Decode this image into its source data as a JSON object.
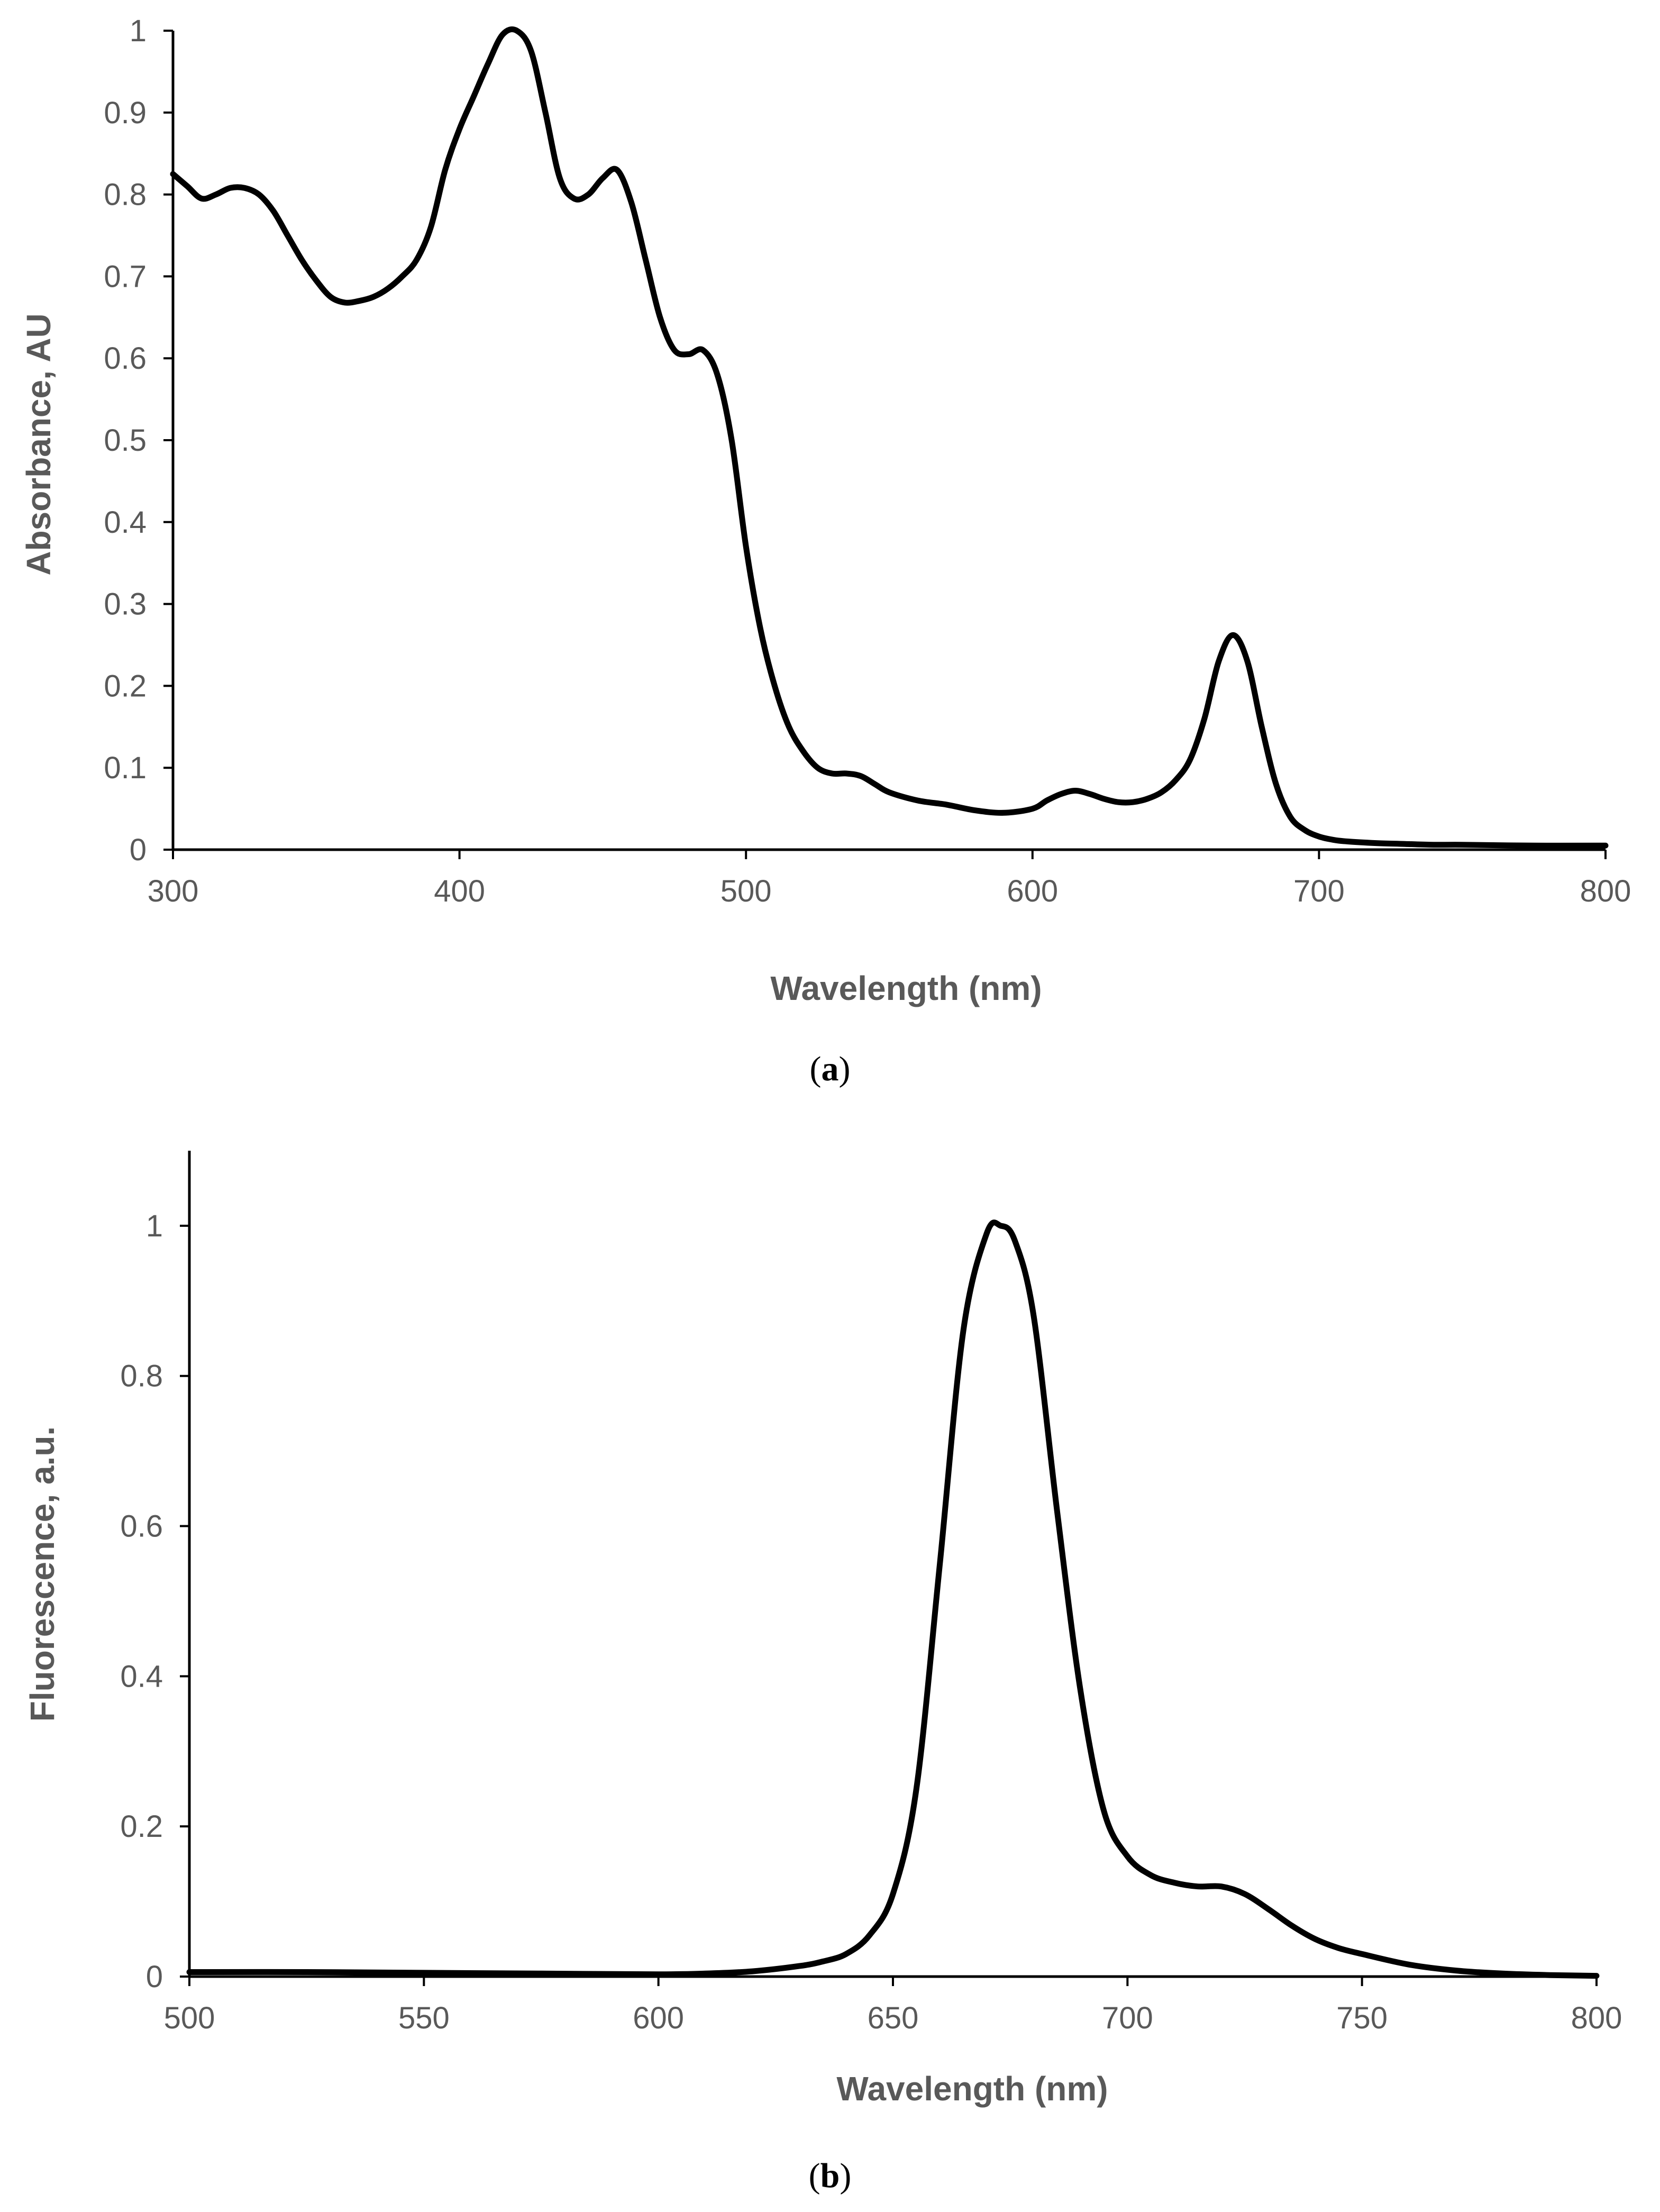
{
  "chart_data": [
    {
      "id": "a",
      "type": "line",
      "caption": "(a)",
      "caption_letter": "a",
      "xlabel": "Wavelength (nm)",
      "ylabel": "Absorbance, AU",
      "xlim": [
        300,
        800
      ],
      "ylim": [
        0,
        1
      ],
      "x_ticks": [
        300,
        400,
        500,
        600,
        700,
        800
      ],
      "x_tick_labels": [
        "300",
        "400",
        "500",
        "600",
        "700",
        "800"
      ],
      "y_ticks": [
        0,
        0.1,
        0.2,
        0.3,
        0.4,
        0.5,
        0.6,
        0.7,
        0.8,
        0.9,
        1
      ],
      "y_tick_labels": [
        "0",
        "0.1",
        "0.2",
        "0.3",
        "0.4",
        "0.5",
        "0.6",
        "0.7",
        "0.8",
        "0.9",
        "1"
      ],
      "grid": false,
      "series": [
        {
          "name": "Absorbance",
          "color": "#000000",
          "x": [
            300,
            305,
            310,
            315,
            320,
            325,
            330,
            335,
            340,
            345,
            350,
            355,
            360,
            365,
            370,
            375,
            380,
            385,
            390,
            395,
            400,
            405,
            410,
            415,
            420,
            425,
            430,
            435,
            440,
            445,
            450,
            455,
            460,
            465,
            470,
            475,
            480,
            485,
            490,
            495,
            500,
            505,
            510,
            515,
            520,
            525,
            530,
            535,
            540,
            545,
            550,
            560,
            570,
            580,
            590,
            600,
            605,
            610,
            615,
            620,
            625,
            630,
            635,
            640,
            645,
            650,
            655,
            660,
            665,
            670,
            675,
            680,
            685,
            690,
            695,
            700,
            705,
            710,
            720,
            730,
            740,
            750,
            775,
            800
          ],
          "y": [
            0.825,
            0.81,
            0.795,
            0.8,
            0.808,
            0.808,
            0.8,
            0.78,
            0.75,
            0.72,
            0.695,
            0.675,
            0.668,
            0.67,
            0.675,
            0.685,
            0.7,
            0.72,
            0.76,
            0.83,
            0.88,
            0.92,
            0.96,
            0.995,
            1.0,
            0.975,
            0.9,
            0.82,
            0.795,
            0.8,
            0.82,
            0.83,
            0.79,
            0.72,
            0.65,
            0.61,
            0.605,
            0.61,
            0.58,
            0.5,
            0.37,
            0.27,
            0.2,
            0.15,
            0.12,
            0.1,
            0.093,
            0.093,
            0.09,
            0.08,
            0.07,
            0.06,
            0.055,
            0.048,
            0.045,
            0.05,
            0.06,
            0.068,
            0.072,
            0.068,
            0.062,
            0.058,
            0.058,
            0.062,
            0.07,
            0.085,
            0.11,
            0.16,
            0.23,
            0.262,
            0.23,
            0.15,
            0.08,
            0.04,
            0.024,
            0.016,
            0.012,
            0.01,
            0.008,
            0.007,
            0.006,
            0.006,
            0.005,
            0.005
          ]
        }
      ]
    },
    {
      "id": "b",
      "type": "line",
      "caption": "(b)",
      "caption_letter": "b",
      "xlabel": "Wavelength (nm)",
      "ylabel": "Fluorescence, a.u.",
      "xlim": [
        500,
        800
      ],
      "ylim": [
        0,
        1.1
      ],
      "x_ticks": [
        500,
        550,
        600,
        650,
        700,
        750,
        800
      ],
      "x_tick_labels": [
        "500",
        "550",
        "600",
        "650",
        "700",
        "750",
        "800"
      ],
      "y_ticks": [
        0,
        0.2,
        0.4,
        0.6,
        0.8,
        1
      ],
      "y_tick_labels": [
        "0",
        "0.2",
        "0.4",
        "0.6",
        "0.8",
        "1"
      ],
      "grid": false,
      "series": [
        {
          "name": "Fluorescence",
          "color": "#000000",
          "x": [
            500,
            525,
            550,
            575,
            600,
            610,
            620,
            630,
            635,
            640,
            645,
            650,
            655,
            660,
            665,
            670,
            673,
            676,
            680,
            685,
            690,
            695,
            700,
            705,
            710,
            715,
            720,
            725,
            730,
            735,
            740,
            745,
            750,
            760,
            770,
            780,
            790,
            800
          ],
          "y": [
            0.006,
            0.006,
            0.005,
            0.004,
            0.003,
            0.004,
            0.007,
            0.014,
            0.02,
            0.03,
            0.055,
            0.11,
            0.25,
            0.55,
            0.86,
            0.99,
            1.0,
            0.98,
            0.88,
            0.62,
            0.38,
            0.22,
            0.16,
            0.135,
            0.125,
            0.12,
            0.12,
            0.11,
            0.09,
            0.068,
            0.05,
            0.038,
            0.03,
            0.016,
            0.008,
            0.004,
            0.002,
            0.001
          ]
        }
      ]
    }
  ]
}
